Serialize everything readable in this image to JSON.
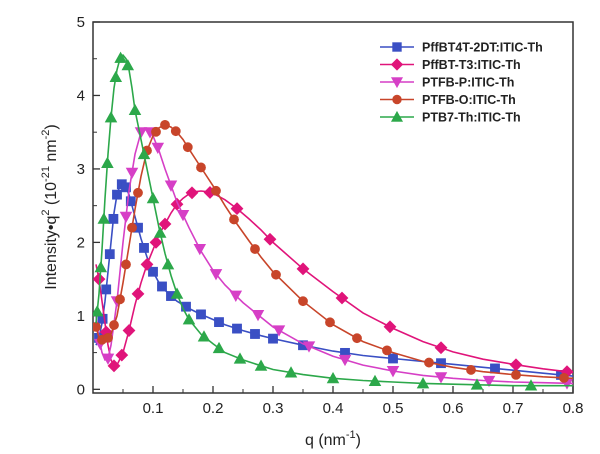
{
  "chart_data": {
    "type": "line",
    "x_axis": {
      "label_main": "q (nm",
      "label_sup": "-1",
      "label_end": ")",
      "ticks": [
        "0.1",
        "0.2",
        "0.3",
        "0.4",
        "0.5",
        "0.6",
        "0.7",
        "0.8"
      ],
      "range": [
        0,
        0.8
      ]
    },
    "y_axis": {
      "label_main": "Intensity•q",
      "label_sup": "2",
      "label_mid": " (10",
      "label_sup2": "-21",
      "label_unit": " nm",
      "label_sup3": "-2",
      "label_end": ")",
      "ticks": [
        "0",
        "1",
        "2",
        "3",
        "4",
        "5"
      ],
      "range": [
        -0.05,
        5
      ]
    },
    "legend_position": "top-right",
    "series": [
      {
        "name": "PffBT4T-2DT:ITIC-Th",
        "color": "#3a4fc4",
        "marker": "square",
        "x": [
          0.005,
          0.01,
          0.015,
          0.02,
          0.025,
          0.03,
          0.035,
          0.04,
          0.045,
          0.05,
          0.055,
          0.06,
          0.065,
          0.07,
          0.075,
          0.08,
          0.09,
          0.1,
          0.11,
          0.12,
          0.13,
          0.14,
          0.15,
          0.16,
          0.18,
          0.2,
          0.22,
          0.25,
          0.28,
          0.3,
          0.35,
          0.4,
          0.45,
          0.5,
          0.55,
          0.6,
          0.65,
          0.7,
          0.75,
          0.8
        ],
        "y": [
          0.6,
          0.7,
          0.9,
          1.2,
          1.6,
          2.0,
          2.4,
          2.65,
          2.78,
          2.8,
          2.75,
          2.65,
          2.5,
          2.35,
          2.2,
          2.05,
          1.8,
          1.6,
          1.45,
          1.35,
          1.27,
          1.2,
          1.15,
          1.1,
          1.02,
          0.95,
          0.88,
          0.8,
          0.73,
          0.69,
          0.6,
          0.52,
          0.46,
          0.42,
          0.38,
          0.34,
          0.3,
          0.26,
          0.22,
          0.18
        ],
        "marker_x": [
          0.01,
          0.016,
          0.022,
          0.028,
          0.034,
          0.04,
          0.048,
          0.055,
          0.063,
          0.075,
          0.085,
          0.1,
          0.115,
          0.13,
          0.155,
          0.18,
          0.21,
          0.24,
          0.27,
          0.3,
          0.35,
          0.42,
          0.5,
          0.58,
          0.67,
          0.78
        ]
      },
      {
        "name": "PffBT-T3:ITIC-Th",
        "color": "#e0147a",
        "marker": "diamond",
        "x": [
          0.005,
          0.01,
          0.015,
          0.02,
          0.025,
          0.03,
          0.035,
          0.04,
          0.05,
          0.06,
          0.07,
          0.08,
          0.09,
          0.1,
          0.11,
          0.12,
          0.13,
          0.14,
          0.15,
          0.16,
          0.17,
          0.18,
          0.19,
          0.2,
          0.22,
          0.24,
          0.26,
          0.28,
          0.3,
          0.35,
          0.4,
          0.45,
          0.5,
          0.55,
          0.6,
          0.65,
          0.7,
          0.75,
          0.8
        ],
        "y": [
          1.7,
          1.5,
          1.2,
          0.9,
          0.6,
          0.4,
          0.32,
          0.33,
          0.5,
          0.8,
          1.15,
          1.45,
          1.7,
          1.9,
          2.1,
          2.25,
          2.4,
          2.52,
          2.6,
          2.66,
          2.69,
          2.7,
          2.69,
          2.67,
          2.58,
          2.46,
          2.32,
          2.17,
          2.0,
          1.64,
          1.33,
          1.04,
          0.83,
          0.65,
          0.51,
          0.41,
          0.34,
          0.28,
          0.23
        ],
        "marker_x": [
          0.01,
          0.022,
          0.035,
          0.048,
          0.06,
          0.075,
          0.09,
          0.105,
          0.12,
          0.14,
          0.165,
          0.195,
          0.24,
          0.295,
          0.35,
          0.415,
          0.495,
          0.58,
          0.705,
          0.79
        ]
      },
      {
        "name": "PTFB-P:ITIC-Th",
        "color": "#d63fc6",
        "marker": "triangle-down",
        "x": [
          0.005,
          0.01,
          0.015,
          0.02,
          0.025,
          0.03,
          0.04,
          0.05,
          0.06,
          0.07,
          0.08,
          0.085,
          0.09,
          0.1,
          0.11,
          0.12,
          0.14,
          0.16,
          0.18,
          0.2,
          0.22,
          0.25,
          0.28,
          0.3,
          0.35,
          0.4,
          0.45,
          0.5,
          0.55,
          0.6,
          0.65,
          0.7,
          0.75,
          0.8
        ],
        "y": [
          1.0,
          0.7,
          0.5,
          0.4,
          0.42,
          0.6,
          1.2,
          2.0,
          2.7,
          3.2,
          3.5,
          3.55,
          3.55,
          3.45,
          3.25,
          3.0,
          2.55,
          2.2,
          1.88,
          1.62,
          1.42,
          1.18,
          0.98,
          0.85,
          0.62,
          0.45,
          0.33,
          0.25,
          0.19,
          0.15,
          0.12,
          0.1,
          0.09,
          0.08
        ],
        "marker_x": [
          0.012,
          0.025,
          0.04,
          0.055,
          0.065,
          0.08,
          0.095,
          0.108,
          0.13,
          0.15,
          0.178,
          0.205,
          0.238,
          0.275,
          0.31,
          0.36,
          0.42,
          0.5,
          0.58,
          0.66,
          0.79
        ]
      },
      {
        "name": "PTFB-O:ITIC-Th",
        "color": "#c8452a",
        "marker": "circle",
        "x": [
          0.005,
          0.01,
          0.02,
          0.03,
          0.04,
          0.05,
          0.06,
          0.07,
          0.08,
          0.09,
          0.1,
          0.11,
          0.12,
          0.13,
          0.14,
          0.15,
          0.16,
          0.18,
          0.2,
          0.22,
          0.24,
          0.26,
          0.28,
          0.3,
          0.35,
          0.4,
          0.45,
          0.5,
          0.55,
          0.6,
          0.65,
          0.7,
          0.75,
          0.8
        ],
        "y": [
          0.85,
          0.7,
          0.65,
          0.75,
          1.0,
          1.45,
          1.95,
          2.45,
          2.9,
          3.25,
          3.45,
          3.56,
          3.6,
          3.57,
          3.5,
          3.4,
          3.27,
          3.02,
          2.77,
          2.5,
          2.25,
          2.02,
          1.8,
          1.6,
          1.2,
          0.88,
          0.65,
          0.5,
          0.38,
          0.3,
          0.24,
          0.2,
          0.17,
          0.15
        ],
        "marker_x": [
          0.005,
          0.015,
          0.025,
          0.035,
          0.045,
          0.055,
          0.065,
          0.075,
          0.09,
          0.105,
          0.12,
          0.138,
          0.158,
          0.18,
          0.205,
          0.235,
          0.27,
          0.305,
          0.35,
          0.395,
          0.44,
          0.49,
          0.56,
          0.63,
          0.705,
          0.785
        ]
      },
      {
        "name": "PTB7-Th:ITIC-Th",
        "color": "#2ca84a",
        "marker": "triangle-up",
        "x": [
          0.005,
          0.01,
          0.015,
          0.02,
          0.025,
          0.03,
          0.035,
          0.04,
          0.045,
          0.05,
          0.055,
          0.06,
          0.065,
          0.07,
          0.08,
          0.09,
          0.1,
          0.11,
          0.12,
          0.13,
          0.14,
          0.15,
          0.16,
          0.18,
          0.2,
          0.22,
          0.25,
          0.28,
          0.3,
          0.35,
          0.4,
          0.45,
          0.5,
          0.55,
          0.6,
          0.65,
          0.7,
          0.75,
          0.8
        ],
        "y": [
          0.9,
          1.3,
          1.9,
          2.6,
          3.2,
          3.7,
          4.1,
          4.35,
          4.5,
          4.55,
          4.5,
          4.35,
          4.1,
          3.8,
          3.4,
          3.0,
          2.6,
          2.2,
          1.85,
          1.55,
          1.3,
          1.1,
          0.95,
          0.75,
          0.62,
          0.5,
          0.4,
          0.32,
          0.27,
          0.2,
          0.15,
          0.12,
          0.1,
          0.08,
          0.07,
          0.06,
          0.05,
          0.05,
          0.05
        ],
        "marker_x": [
          0.007,
          0.013,
          0.018,
          0.024,
          0.03,
          0.038,
          0.046,
          0.058,
          0.07,
          0.085,
          0.1,
          0.112,
          0.125,
          0.14,
          0.16,
          0.185,
          0.21,
          0.245,
          0.28,
          0.33,
          0.4,
          0.47,
          0.55,
          0.64,
          0.73
        ]
      }
    ]
  }
}
